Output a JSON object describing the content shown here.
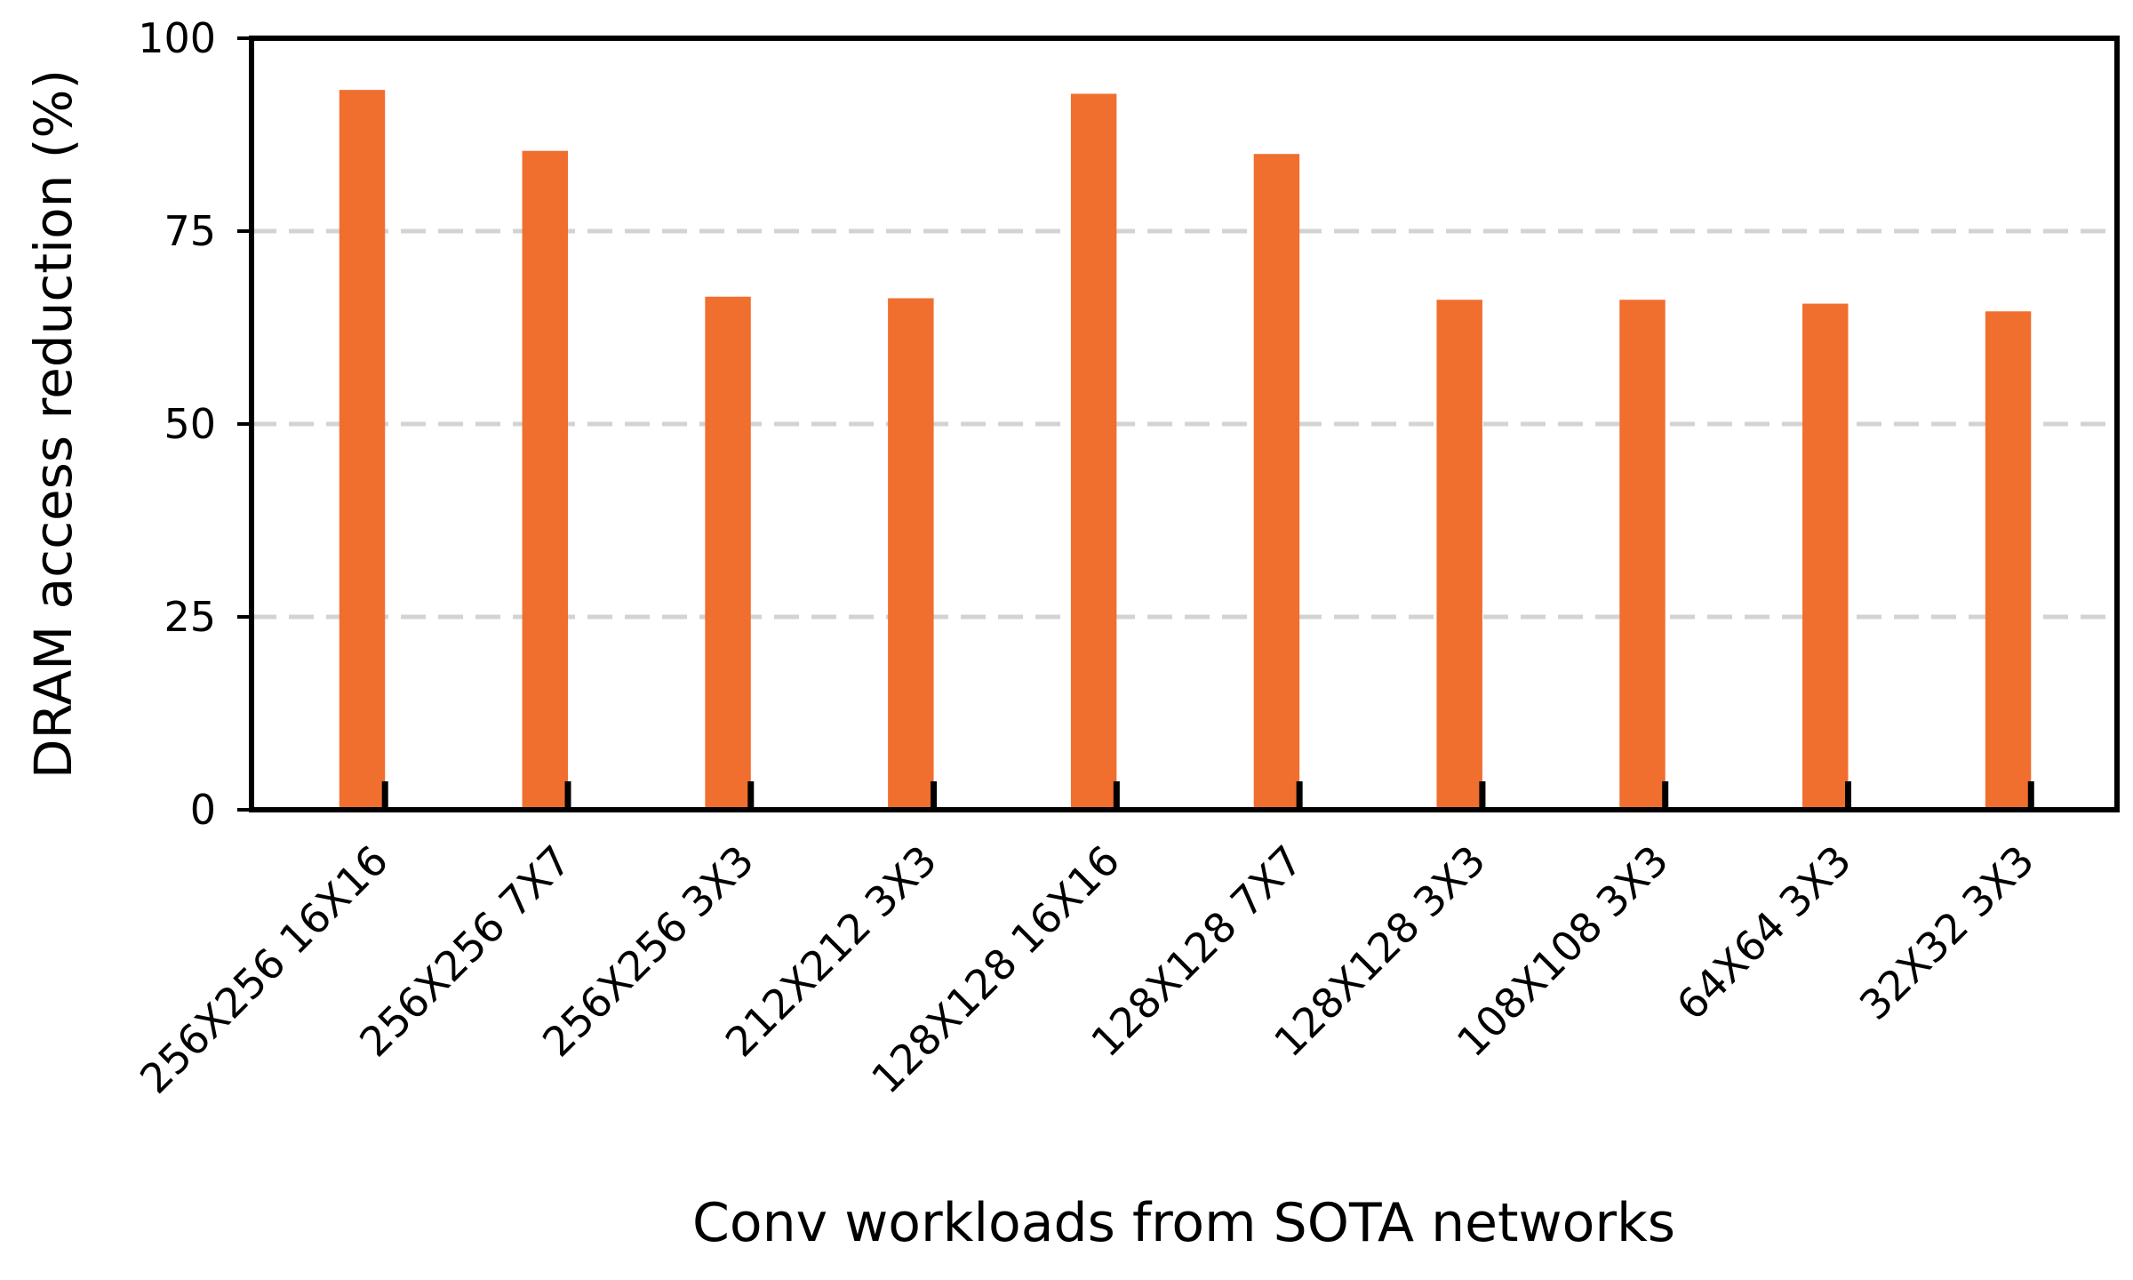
{
  "chart_data": {
    "type": "bar",
    "categories": [
      "256X256 16X16",
      "256X256 7X7",
      "256X256 3X3",
      "212X212 3X3",
      "128X128 16X16",
      "128X128 7X7",
      "128X128 3X3",
      "108X108 3X3",
      "64X64 3X3",
      "32X32 3X3"
    ],
    "values": [
      93.3,
      85.4,
      66.5,
      66.3,
      92.8,
      85.0,
      66.1,
      66.1,
      65.6,
      64.6
    ],
    "color": "#f06e2e",
    "ylim": [
      0,
      100
    ],
    "yticks": [
      0,
      25,
      50,
      75,
      100
    ],
    "grid": true,
    "x_label": "Conv workloads from SOTA networks",
    "y_label": "DRAM access reduction (%)"
  }
}
